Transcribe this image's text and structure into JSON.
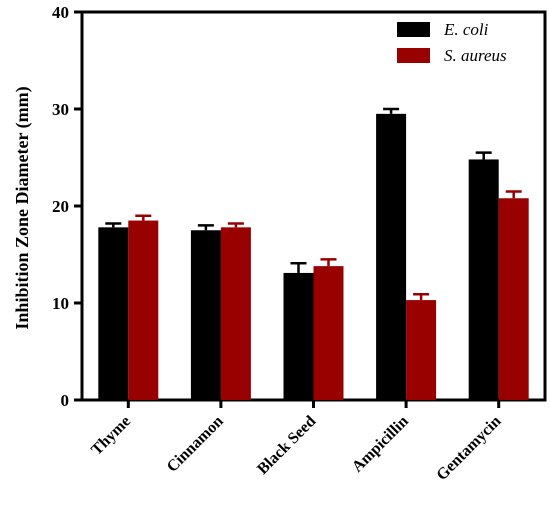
{
  "chart_data": {
    "type": "bar",
    "ylabel": "Inhibition Zone Diameter (mm)",
    "xlabel": "",
    "ylim": [
      0,
      40
    ],
    "yticks": [
      0,
      10,
      20,
      30,
      40
    ],
    "categories": [
      "Thyme",
      "Cinnamon",
      "Black Seed",
      "Ampicillin",
      "Gentamycin"
    ],
    "series": [
      {
        "name": "E. coli",
        "color": "#000000",
        "values": [
          17.8,
          17.5,
          13.1,
          29.5,
          24.8
        ],
        "errors": [
          0.4,
          0.5,
          1.0,
          0.5,
          0.7
        ]
      },
      {
        "name": "S. aureus",
        "color": "#990000",
        "values": [
          18.5,
          17.8,
          13.8,
          10.3,
          20.8
        ],
        "errors": [
          0.5,
          0.4,
          0.7,
          0.6,
          0.7
        ]
      }
    ],
    "legend_position": "top-right",
    "grid": false
  }
}
